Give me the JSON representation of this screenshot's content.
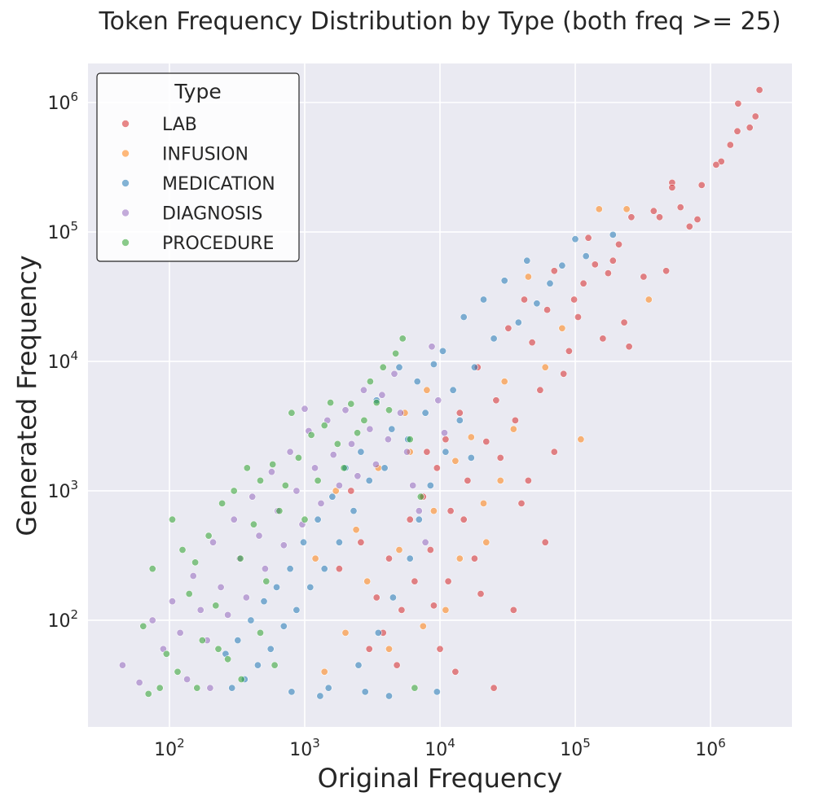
{
  "chart_data": {
    "type": "scatter",
    "title": "Token Frequency Distribution by Type (both freq >= 25)",
    "xlabel": "Original Frequency",
    "ylabel": "Generated Frequency",
    "xscale": "log",
    "yscale": "log",
    "xlim": [
      25,
      4000000
    ],
    "ylim": [
      15,
      2000000
    ],
    "grid": true,
    "legend": {
      "title": "Type",
      "position": "top-left"
    },
    "x_ticks": [
      {
        "base": "10",
        "exp": "2",
        "value": 100
      },
      {
        "base": "10",
        "exp": "3",
        "value": 1000
      },
      {
        "base": "10",
        "exp": "4",
        "value": 10000
      },
      {
        "base": "10",
        "exp": "5",
        "value": 100000
      },
      {
        "base": "10",
        "exp": "6",
        "value": 1000000
      }
    ],
    "y_ticks": [
      {
        "base": "10",
        "exp": "2",
        "value": 100
      },
      {
        "base": "10",
        "exp": "3",
        "value": 1000
      },
      {
        "base": "10",
        "exp": "4",
        "value": 10000
      },
      {
        "base": "10",
        "exp": "5",
        "value": 100000
      },
      {
        "base": "10",
        "exp": "6",
        "value": 1000000
      }
    ],
    "series": [
      {
        "name": "LAB",
        "color": "#d62728",
        "points": [
          [
            2300000,
            1250000
          ],
          [
            2150000,
            780000
          ],
          [
            1950000,
            640000
          ],
          [
            1600000,
            980000
          ],
          [
            1580000,
            600000
          ],
          [
            1400000,
            470000
          ],
          [
            1200000,
            350000
          ],
          [
            1100000,
            330000
          ],
          [
            860000,
            230000
          ],
          [
            800000,
            125000
          ],
          [
            700000,
            110000
          ],
          [
            600000,
            155000
          ],
          [
            520000,
            240000
          ],
          [
            520000,
            220000
          ],
          [
            470000,
            50000
          ],
          [
            420000,
            130000
          ],
          [
            380000,
            145000
          ],
          [
            320000,
            45000
          ],
          [
            260000,
            130000
          ],
          [
            250000,
            13000
          ],
          [
            230000,
            20000
          ],
          [
            210000,
            80000
          ],
          [
            190000,
            60000
          ],
          [
            175000,
            48000
          ],
          [
            160000,
            15000
          ],
          [
            140000,
            56000
          ],
          [
            125000,
            90000
          ],
          [
            115000,
            40000
          ],
          [
            105000,
            22000
          ],
          [
            98000,
            30000
          ],
          [
            90000,
            12000
          ],
          [
            82000,
            8000
          ],
          [
            70000,
            50000
          ],
          [
            62000,
            25000
          ],
          [
            55000,
            6000
          ],
          [
            48000,
            14000
          ],
          [
            42000,
            30000
          ],
          [
            36000,
            3500
          ],
          [
            32000,
            18000
          ],
          [
            28000,
            1800
          ],
          [
            26000,
            5000
          ],
          [
            22000,
            2400
          ],
          [
            19000,
            9000
          ],
          [
            16000,
            1200
          ],
          [
            14000,
            4000
          ],
          [
            12000,
            700
          ],
          [
            11000,
            2500
          ],
          [
            9500,
            1500
          ],
          [
            8500,
            350
          ],
          [
            7500,
            900
          ],
          [
            6500,
            200
          ],
          [
            6000,
            600
          ],
          [
            5200,
            120
          ],
          [
            4800,
            45
          ],
          [
            4200,
            300
          ],
          [
            3800,
            80
          ],
          [
            3400,
            150
          ],
          [
            3000,
            60
          ],
          [
            2600,
            400
          ],
          [
            2200,
            1000
          ],
          [
            1800,
            250
          ],
          [
            25000,
            30
          ],
          [
            13000,
            40
          ],
          [
            10000,
            60
          ],
          [
            9000,
            130
          ],
          [
            8000,
            2000
          ],
          [
            15000,
            600
          ],
          [
            18000,
            300
          ],
          [
            40000,
            800
          ],
          [
            45000,
            1200
          ],
          [
            60000,
            400
          ],
          [
            70000,
            2000
          ],
          [
            35000,
            120
          ],
          [
            20000,
            160
          ],
          [
            11500,
            200
          ]
        ]
      },
      {
        "name": "INFUSION",
        "color": "#ff7f0e",
        "points": [
          [
            350000,
            30000
          ],
          [
            240000,
            150000
          ],
          [
            150000,
            150000
          ],
          [
            110000,
            2500
          ],
          [
            80000,
            18000
          ],
          [
            60000,
            9000
          ],
          [
            45000,
            45000
          ],
          [
            35000,
            3000
          ],
          [
            28000,
            1200
          ],
          [
            21000,
            800
          ],
          [
            17000,
            2600
          ],
          [
            14000,
            300
          ],
          [
            11000,
            120
          ],
          [
            9000,
            700
          ],
          [
            7500,
            90
          ],
          [
            6000,
            2000
          ],
          [
            5000,
            350
          ],
          [
            4200,
            60
          ],
          [
            3500,
            1500
          ],
          [
            2900,
            200
          ],
          [
            2400,
            500
          ],
          [
            2000,
            80
          ],
          [
            1700,
            1000
          ],
          [
            1400,
            40
          ],
          [
            1200,
            300
          ],
          [
            5500,
            4000
          ],
          [
            8000,
            6000
          ],
          [
            13000,
            1700
          ],
          [
            22000,
            400
          ],
          [
            30000,
            7000
          ]
        ]
      },
      {
        "name": "MEDICATION",
        "color": "#1f77b4",
        "points": [
          [
            190000,
            95000
          ],
          [
            120000,
            65000
          ],
          [
            100000,
            88000
          ],
          [
            80000,
            55000
          ],
          [
            65000,
            40000
          ],
          [
            52000,
            28000
          ],
          [
            44000,
            60000
          ],
          [
            38000,
            20000
          ],
          [
            30000,
            42000
          ],
          [
            25000,
            15000
          ],
          [
            21000,
            30000
          ],
          [
            18000,
            9000
          ],
          [
            15000,
            22000
          ],
          [
            12500,
            6000
          ],
          [
            10500,
            12000
          ],
          [
            9000,
            9500
          ],
          [
            7800,
            4000
          ],
          [
            6800,
            7000
          ],
          [
            5800,
            2500
          ],
          [
            5000,
            9000
          ],
          [
            4400,
            3000
          ],
          [
            3900,
            1500
          ],
          [
            3400,
            5000
          ],
          [
            3000,
            1200
          ],
          [
            2600,
            2000
          ],
          [
            2300,
            700
          ],
          [
            2000,
            1500
          ],
          [
            1800,
            400
          ],
          [
            1600,
            900
          ],
          [
            1400,
            250
          ],
          [
            1250,
            600
          ],
          [
            1100,
            180
          ],
          [
            980,
            400
          ],
          [
            870,
            120
          ],
          [
            780,
            250
          ],
          [
            700,
            90
          ],
          [
            620,
            180
          ],
          [
            560,
            60
          ],
          [
            500,
            140
          ],
          [
            450,
            45
          ],
          [
            400,
            100
          ],
          [
            360,
            35
          ],
          [
            320,
            70
          ],
          [
            290,
            30
          ],
          [
            260,
            55
          ],
          [
            1500,
            30
          ],
          [
            2500,
            45
          ],
          [
            3500,
            80
          ],
          [
            4500,
            150
          ],
          [
            6000,
            300
          ],
          [
            7000,
            600
          ],
          [
            8500,
            1100
          ],
          [
            11000,
            2000
          ],
          [
            14000,
            3500
          ],
          [
            17000,
            1800
          ],
          [
            9500,
            28
          ],
          [
            4200,
            26
          ],
          [
            2800,
            28
          ],
          [
            1300,
            26
          ],
          [
            800,
            28
          ]
        ]
      },
      {
        "name": "DIAGNOSIS",
        "color": "#9467bd",
        "points": [
          [
            45,
            45
          ],
          [
            60,
            33
          ],
          [
            75,
            100
          ],
          [
            90,
            60
          ],
          [
            105,
            140
          ],
          [
            120,
            80
          ],
          [
            135,
            35
          ],
          [
            150,
            220
          ],
          [
            170,
            120
          ],
          [
            190,
            70
          ],
          [
            210,
            400
          ],
          [
            240,
            180
          ],
          [
            270,
            110
          ],
          [
            300,
            600
          ],
          [
            330,
            300
          ],
          [
            370,
            150
          ],
          [
            410,
            900
          ],
          [
            460,
            450
          ],
          [
            510,
            250
          ],
          [
            570,
            1400
          ],
          [
            630,
            700
          ],
          [
            700,
            380
          ],
          [
            780,
            2000
          ],
          [
            870,
            1000
          ],
          [
            960,
            550
          ],
          [
            1070,
            2900
          ],
          [
            1190,
            1500
          ],
          [
            1320,
            800
          ],
          [
            1470,
            3500
          ],
          [
            1630,
            1900
          ],
          [
            1800,
            1100
          ],
          [
            2000,
            4200
          ],
          [
            2220,
            2300
          ],
          [
            2460,
            1300
          ],
          [
            2730,
            6000
          ],
          [
            3030,
            3000
          ],
          [
            3360,
            1600
          ],
          [
            3730,
            5500
          ],
          [
            4140,
            2500
          ],
          [
            4600,
            8000
          ],
          [
            5100,
            4000
          ],
          [
            5700,
            2000
          ],
          [
            6300,
            1100
          ],
          [
            7000,
            700
          ],
          [
            7800,
            400
          ],
          [
            8700,
            13000
          ],
          [
            9700,
            5000
          ],
          [
            10800,
            2800
          ],
          [
            1000,
            4300
          ],
          [
            200,
            30
          ]
        ]
      },
      {
        "name": "PROCEDURE",
        "color": "#2ca02c",
        "points": [
          [
            64,
            90
          ],
          [
            70,
            27
          ],
          [
            75,
            250
          ],
          [
            85,
            30
          ],
          [
            95,
            55
          ],
          [
            105,
            600
          ],
          [
            115,
            40
          ],
          [
            125,
            350
          ],
          [
            140,
            160
          ],
          [
            155,
            280
          ],
          [
            175,
            70
          ],
          [
            195,
            450
          ],
          [
            220,
            130
          ],
          [
            245,
            800
          ],
          [
            270,
            50
          ],
          [
            300,
            1000
          ],
          [
            335,
            300
          ],
          [
            375,
            1500
          ],
          [
            420,
            550
          ],
          [
            470,
            1200
          ],
          [
            520,
            200
          ],
          [
            580,
            1600
          ],
          [
            650,
            700
          ],
          [
            720,
            1100
          ],
          [
            800,
            4000
          ],
          [
            900,
            1800
          ],
          [
            1000,
            600
          ],
          [
            1120,
            2700
          ],
          [
            1250,
            1200
          ],
          [
            1400,
            3200
          ],
          [
            1550,
            4800
          ],
          [
            1750,
            2300
          ],
          [
            1950,
            1500
          ],
          [
            2200,
            4700
          ],
          [
            2450,
            2800
          ],
          [
            2750,
            3500
          ],
          [
            3050,
            7000
          ],
          [
            3400,
            4800
          ],
          [
            3800,
            9000
          ],
          [
            4200,
            4200
          ],
          [
            4700,
            11500
          ],
          [
            5300,
            15000
          ],
          [
            6000,
            2500
          ],
          [
            6500,
            30
          ],
          [
            7200,
            900
          ],
          [
            160,
            30
          ],
          [
            230,
            60
          ],
          [
            340,
            35
          ],
          [
            470,
            80
          ],
          [
            600,
            45
          ]
        ]
      }
    ]
  }
}
